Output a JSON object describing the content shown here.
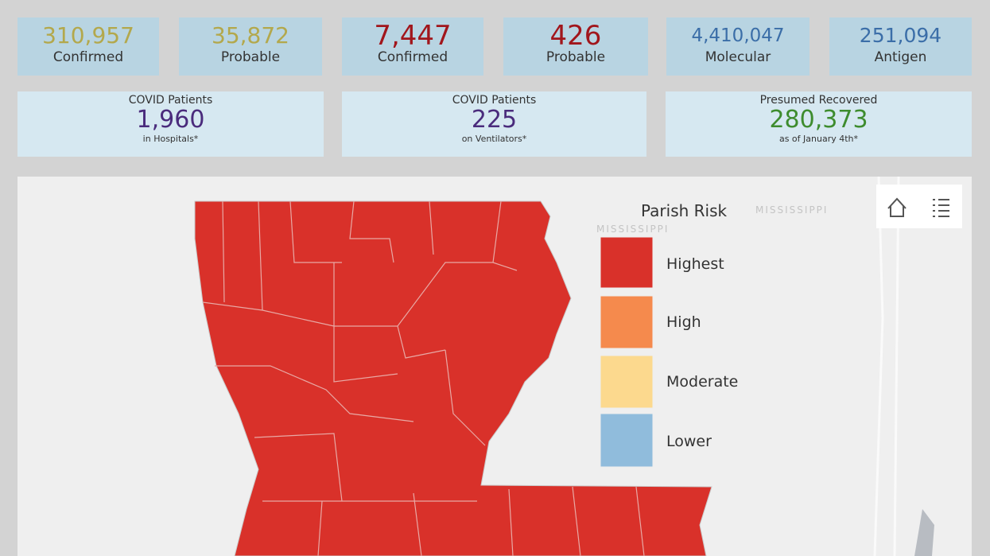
{
  "stat_cards": [
    {
      "value": "310,957",
      "label": "Confirmed"
    },
    {
      "value": "35,872",
      "label": "Probable"
    },
    {
      "value": "7,447",
      "label": "Confirmed"
    },
    {
      "value": "426",
      "label": "Probable"
    },
    {
      "value": "4,410,047",
      "label": "Molecular"
    },
    {
      "value": "251,094",
      "label": "Antigen"
    }
  ],
  "info_cards": [
    {
      "title": "COVID Patients",
      "value": "1,960",
      "note": "in Hospitals*"
    },
    {
      "title": "COVID Patients",
      "value": "225",
      "note": "on Ventilators*"
    },
    {
      "title": "Presumed Recovered",
      "value": "280,373",
      "note": "as of January 4th*"
    }
  ],
  "map": {
    "labels": [
      "MISSISSIPPI",
      "MISSISSIPPI"
    ]
  },
  "legend": {
    "title": "Parish Risk",
    "items": [
      "Highest",
      "High",
      "Moderate",
      "Lower"
    ]
  }
}
